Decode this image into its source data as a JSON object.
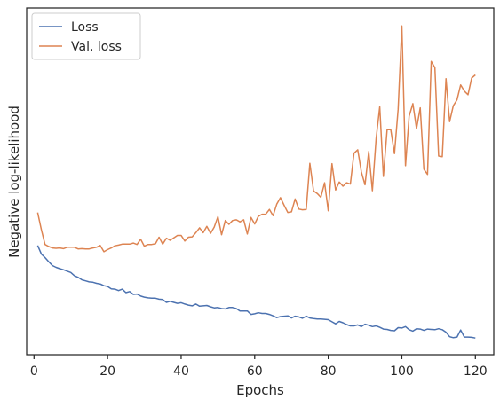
{
  "chart_data": {
    "type": "line",
    "title": "",
    "xlabel": "Epochs",
    "ylabel": "Negative log-likelihood",
    "xlim": [
      -2,
      125
    ],
    "ylim": [
      0,
      100
    ],
    "xticks": [
      0,
      20,
      40,
      60,
      80,
      100,
      120
    ],
    "yticks_shown": false,
    "grid": false,
    "legend_placement": "upper left",
    "x": [
      1,
      2,
      3,
      4,
      5,
      6,
      7,
      8,
      9,
      10,
      11,
      12,
      13,
      14,
      15,
      16,
      17,
      18,
      19,
      20,
      21,
      22,
      23,
      24,
      25,
      26,
      27,
      28,
      29,
      30,
      31,
      32,
      33,
      34,
      35,
      36,
      37,
      38,
      39,
      40,
      41,
      42,
      43,
      44,
      45,
      46,
      47,
      48,
      49,
      50,
      51,
      52,
      53,
      54,
      55,
      56,
      57,
      58,
      59,
      60,
      61,
      62,
      63,
      64,
      65,
      66,
      67,
      68,
      69,
      70,
      71,
      72,
      73,
      74,
      75,
      76,
      77,
      78,
      79,
      80,
      81,
      82,
      83,
      84,
      85,
      86,
      87,
      88,
      89,
      90,
      91,
      92,
      93,
      94,
      95,
      96,
      97,
      98,
      99,
      100,
      101,
      102,
      103,
      104,
      105,
      106,
      107,
      108,
      109,
      110,
      111,
      112,
      113,
      114,
      115,
      116,
      117,
      118,
      119,
      120
    ],
    "series": [
      {
        "name": "Loss",
        "color": "#4c72b0",
        "values": [
          31.5,
          29,
          28,
          26.8,
          25.7,
          25.2,
          24.8,
          24.5,
          24.1,
          23.7,
          22.8,
          22.3,
          21.6,
          21.3,
          21,
          20.9,
          20.6,
          20.4,
          19.9,
          19.7,
          19,
          18.9,
          18.5,
          18.9,
          17.9,
          18.2,
          17.4,
          17.5,
          16.9,
          16.6,
          16.4,
          16.3,
          16.3,
          16,
          15.9,
          15.1,
          15.4,
          15.1,
          14.8,
          15,
          14.6,
          14.3,
          14.1,
          14.6,
          14,
          14.1,
          14.2,
          13.8,
          13.5,
          13.6,
          13.3,
          13.2,
          13.6,
          13.6,
          13.3,
          12.6,
          12.6,
          12.6,
          11.6,
          11.8,
          12.1,
          11.9,
          11.9,
          11.6,
          11.2,
          10.7,
          11,
          11.1,
          11.2,
          10.6,
          11.1,
          10.9,
          10.5,
          11.1,
          10.6,
          10.4,
          10.3,
          10.3,
          10.2,
          10.1,
          9.5,
          8.9,
          9.6,
          9.2,
          8.7,
          8.3,
          8.3,
          8.6,
          8.1,
          8.8,
          8.5,
          8.1,
          8.3,
          7.9,
          7.4,
          7.3,
          7,
          6.9,
          7.8,
          7.7,
          8.1,
          7.2,
          6.8,
          7.5,
          7.4,
          7,
          7.4,
          7.3,
          7.2,
          7.5,
          7.2,
          6.5,
          5.2,
          4.9,
          5.1,
          7.1,
          5.1,
          5.1,
          5,
          4.8
        ]
      },
      {
        "name": "Val. loss",
        "color": "#dd8452",
        "values": [
          41,
          36,
          31.8,
          31.2,
          30.8,
          30.7,
          30.8,
          30.6,
          31,
          31,
          31,
          30.5,
          30.6,
          30.5,
          30.5,
          30.8,
          31,
          31.5,
          29.7,
          30.3,
          30.8,
          31.4,
          31.6,
          31.9,
          31.9,
          31.9,
          32.2,
          31.8,
          33.3,
          31.3,
          31.8,
          31.8,
          32,
          33.9,
          31.9,
          33.6,
          33,
          33.7,
          34.4,
          34.4,
          32.8,
          33.9,
          34,
          35.2,
          36.6,
          35.2,
          37,
          35,
          36.8,
          39.8,
          34.6,
          38.7,
          37.6,
          38.7,
          38.9,
          38.3,
          38.9,
          34.8,
          39.6,
          37.7,
          39.9,
          40.5,
          40.5,
          41.9,
          40.1,
          43.4,
          45.3,
          43.1,
          41,
          41.2,
          44.9,
          42,
          41.8,
          41.9,
          55.2,
          47.2,
          46.5,
          45.4,
          49.6,
          41.5,
          55.1,
          47.5,
          49.8,
          48.6,
          49.6,
          49.2,
          58.1,
          59.1,
          52.7,
          49,
          58.6,
          47.3,
          62.3,
          71.5,
          51.4,
          64.9,
          64.9,
          58,
          70.8,
          94.8,
          54.5,
          68.8,
          72.4,
          65.2,
          71.2,
          53.5,
          52,
          84.6,
          82.8,
          57.3,
          57.1,
          79.6,
          67.2,
          71.8,
          73.5,
          77.8,
          76,
          75,
          79.8,
          80.7
        ]
      }
    ]
  }
}
